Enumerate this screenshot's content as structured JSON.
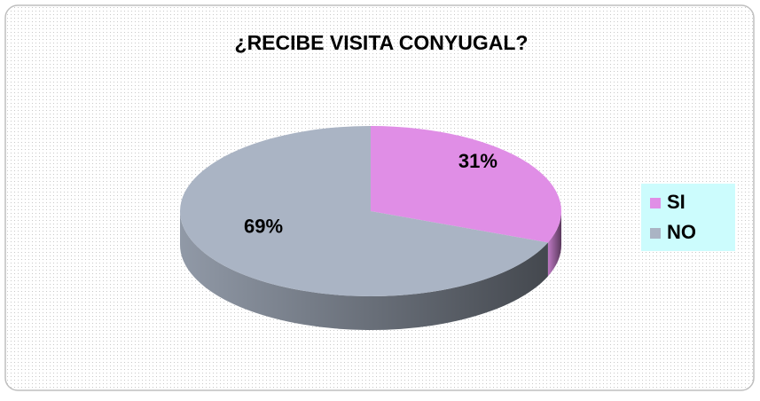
{
  "chart_data": {
    "type": "pie",
    "title": "¿RECIBE VISITA CONYUGAL?",
    "categories": [
      "SI",
      "NO"
    ],
    "values": [
      31,
      69
    ],
    "value_labels": [
      "31%",
      "69%"
    ],
    "colors": [
      "#e08ee6",
      "#aab4c4"
    ],
    "legend": "right"
  }
}
